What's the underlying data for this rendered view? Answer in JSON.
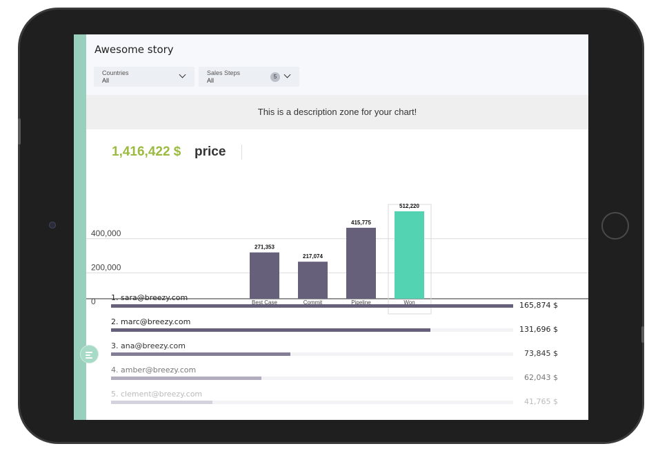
{
  "story": {
    "title": "Awesome story"
  },
  "filters": [
    {
      "label": "Countries",
      "value": "All"
    },
    {
      "label": "Sales Steps",
      "value": "All",
      "count": "5"
    }
  ],
  "description": "This is a description zone for your chart!",
  "kpi": {
    "value": "1,416,422 $",
    "label": "price"
  },
  "chart_data": {
    "type": "bar",
    "categories": [
      "Best Case",
      "Commit",
      "Pipeline",
      "Won"
    ],
    "values": [
      271353,
      217074,
      415775,
      512220
    ],
    "value_labels": [
      "271,353",
      "217,074",
      "415,775",
      "512,220"
    ],
    "y_ticks": [
      0,
      200000,
      400000
    ],
    "y_tick_labels": [
      "0",
      "200,000",
      "400,000"
    ],
    "ylim": [
      0,
      500000
    ],
    "highlighted": "Won",
    "colors": {
      "default": "#67607b",
      "highlight": "#53d3b1"
    },
    "grid": true
  },
  "leaderboard": [
    {
      "rank_name": "1. sara@breezy.com",
      "value": 165874,
      "value_label": "165,874 $"
    },
    {
      "rank_name": "2. marc@breezy.com",
      "value": 131696,
      "value_label": "131,696 $"
    },
    {
      "rank_name": "3. ana@breezy.com",
      "value": 73845,
      "value_label": "73,845 $"
    },
    {
      "rank_name": "4. amber@breezy.com",
      "value": 62043,
      "value_label": "62,043 $"
    },
    {
      "rank_name": "5. clement@breezy.com",
      "value": 41765,
      "value_label": "41,765 $"
    }
  ],
  "colors": {
    "accent_green": "#9bba3f",
    "side_strip": "#98cfbd"
  },
  "icons": {
    "filter_chevron": "chevron-down-icon",
    "fab": "sort-icon"
  }
}
